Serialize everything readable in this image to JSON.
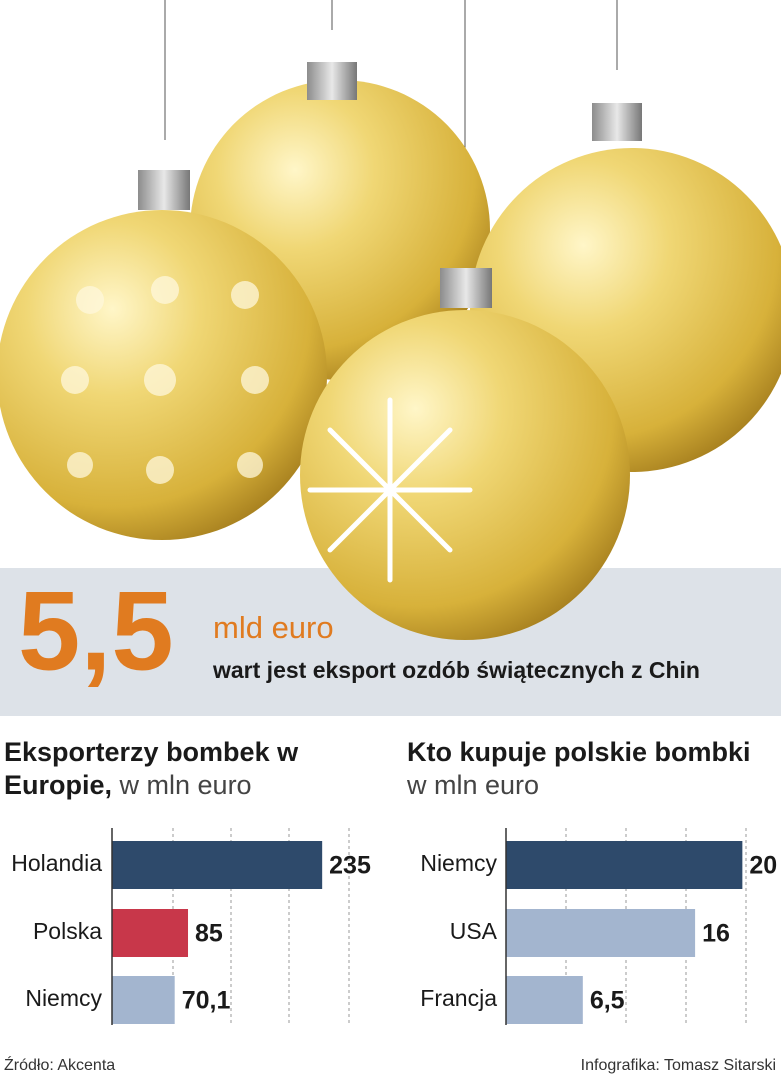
{
  "headline": {
    "number": "5,5",
    "unit": "mld euro",
    "text": "wart jest eksport ozdób świątecznych z Chin"
  },
  "chart_data": [
    {
      "type": "hbar",
      "title": "Eksporterzy bombek w Europie,",
      "subtitle": "w mln euro",
      "categories": [
        "Holandia",
        "Polska",
        "Niemcy"
      ],
      "values": [
        235,
        85,
        70.1
      ],
      "value_labels": [
        "235",
        "85",
        "70,1"
      ],
      "colors": [
        "#2e4a6b",
        "#c8374a",
        "#a3b5cf"
      ],
      "xlim": [
        0,
        265
      ]
    },
    {
      "type": "hbar",
      "title": "Kto kupuje polskie bombki",
      "subtitle": "w mln euro",
      "categories": [
        "Niemcy",
        "USA",
        "Francja"
      ],
      "values": [
        20,
        16,
        6.5
      ],
      "value_labels": [
        "20",
        "16",
        "6,5"
      ],
      "colors": [
        "#2e4a6b",
        "#a3b5cf",
        "#a3b5cf"
      ],
      "xlim": [
        0,
        22
      ]
    }
  ],
  "footer": {
    "source": "Źródło: Akcenta",
    "credit": "Infografika: Tomasz Sitarski"
  }
}
